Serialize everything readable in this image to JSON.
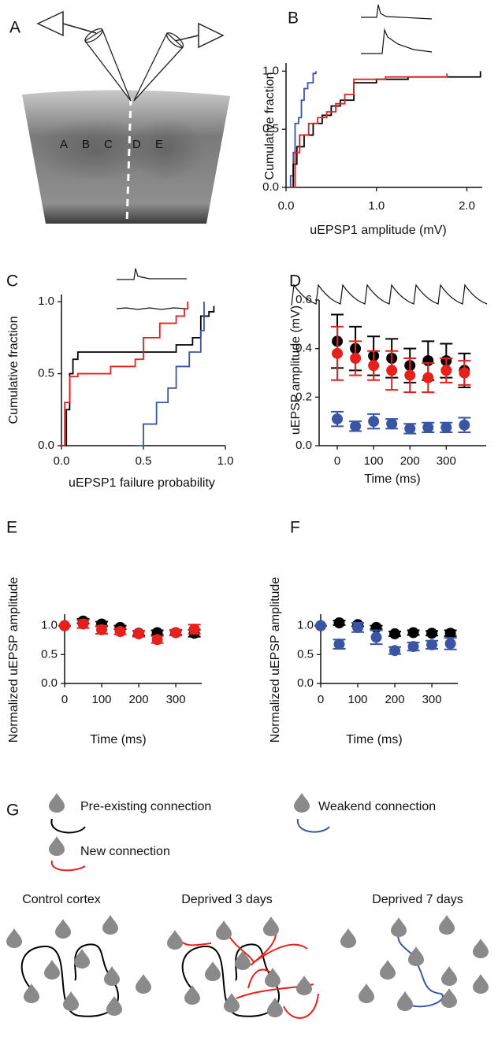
{
  "panel_labels": [
    "A",
    "B",
    "C",
    "D",
    "E",
    "F",
    "G"
  ],
  "panel_a": {
    "barrel_labels": [
      "A",
      "B",
      "C",
      "D",
      "E"
    ]
  },
  "panel_g": {
    "legend": [
      "Pre-existing connection",
      "Weakend connection",
      "New connection"
    ],
    "conditions": [
      "Control cortex",
      "Deprived 3 days",
      "Deprived 7 days"
    ]
  },
  "chart_data": [
    {
      "type": "step",
      "x_label": "uEPSP1 amplitude (mV)",
      "y_label": "Cumulative fraction",
      "xlim": [
        0,
        2.17
      ],
      "ylim": [
        0,
        1.07
      ],
      "xticks": [
        {
          "value": 0,
          "label": "0.0"
        },
        {
          "value": 1,
          "label": "1.0"
        },
        {
          "value": 2,
          "label": "2.0"
        }
      ],
      "yticks": [
        {
          "value": 0,
          "label": "0.0"
        },
        0.5,
        {
          "value": 1,
          "label": "1.0"
        }
      ],
      "series": [
        {
          "color": "#3a55a4",
          "x": [
            0.03,
            0.05,
            0.08,
            0.1,
            0.14,
            0.17,
            0.2,
            0.24,
            0.3,
            0.33
          ],
          "values": [
            0,
            0.1,
            0.3,
            0.55,
            0.6,
            0.75,
            0.85,
            0.9,
            0.98,
            1.0
          ]
        },
        {
          "color": "#000000",
          "x": [
            0.05,
            0.08,
            0.12,
            0.2,
            0.3,
            0.4,
            0.5,
            0.6,
            0.75,
            1.0,
            1.3,
            1.35,
            2.15
          ],
          "values": [
            0,
            0.2,
            0.35,
            0.45,
            0.55,
            0.62,
            0.7,
            0.75,
            0.9,
            0.93,
            0.93,
            0.95,
            1.0
          ]
        },
        {
          "color": "#e8201c",
          "x": [
            0.05,
            0.1,
            0.15,
            0.25,
            0.35,
            0.45,
            0.55,
            0.65,
            0.75,
            1.1,
            1.78
          ],
          "values": [
            0,
            0.3,
            0.45,
            0.55,
            0.6,
            0.65,
            0.72,
            0.8,
            0.93,
            0.95,
            0.98
          ]
        }
      ]
    },
    {
      "type": "step",
      "x_label": "uEPSP1 failure probability",
      "y_label": "Cumulative fraction",
      "xlim": [
        0,
        1.0
      ],
      "ylim": [
        0,
        1.05
      ],
      "xticks": [
        {
          "value": 0,
          "label": "0.0"
        },
        0.5,
        {
          "value": 1,
          "label": "1.0"
        }
      ],
      "yticks": [
        {
          "value": 0,
          "label": "0.0"
        },
        0.5,
        {
          "value": 1,
          "label": "1.0"
        }
      ],
      "series": [
        {
          "color": "#000000",
          "x": [
            0,
            0.03,
            0.05,
            0.07,
            0.1,
            0.3,
            0.6,
            0.7,
            0.8,
            0.85,
            0.9,
            0.93
          ],
          "values": [
            0,
            0.25,
            0.5,
            0.6,
            0.65,
            0.65,
            0.65,
            0.7,
            0.75,
            0.9,
            0.93,
            0.97
          ]
        },
        {
          "color": "#e8201c",
          "x": [
            0,
            0.02,
            0.05,
            0.1,
            0.3,
            0.45,
            0.5,
            0.6,
            0.7,
            0.75,
            0.77
          ],
          "values": [
            0,
            0.3,
            0.48,
            0.5,
            0.55,
            0.6,
            0.75,
            0.85,
            0.9,
            0.95,
            1.0
          ]
        },
        {
          "color": "#3a55a4",
          "x": [
            0.45,
            0.5,
            0.58,
            0.65,
            0.7,
            0.78,
            0.85,
            0.87
          ],
          "values": [
            0,
            0.15,
            0.3,
            0.4,
            0.55,
            0.65,
            0.8,
            1.0
          ]
        }
      ]
    },
    {
      "type": "scatter",
      "x_label": "Time (ms)",
      "y_label": "uEPSP amplitude (mV)",
      "xlim": [
        -50,
        410
      ],
      "ylim": [
        0,
        0.6
      ],
      "xticks": [
        0,
        100,
        200,
        300
      ],
      "yticks": [
        {
          "value": 0,
          "label": "0.0"
        },
        0.2,
        0.4,
        0.6
      ],
      "x": [
        0,
        50,
        100,
        150,
        200,
        250,
        300,
        350
      ],
      "series": [
        {
          "color": "#000000",
          "values": [
            0.43,
            0.4,
            0.37,
            0.36,
            0.33,
            0.35,
            0.35,
            0.31
          ],
          "errors": [
            0.11,
            0.09,
            0.08,
            0.08,
            0.07,
            0.08,
            0.07,
            0.07
          ]
        },
        {
          "color": "#e8201c",
          "values": [
            0.38,
            0.36,
            0.33,
            0.31,
            0.29,
            0.28,
            0.31,
            0.3
          ],
          "errors": [
            0.11,
            0.07,
            0.06,
            0.08,
            0.07,
            0.06,
            0.05,
            0.05
          ]
        },
        {
          "color": "#3a55a4",
          "values": [
            0.11,
            0.08,
            0.1,
            0.09,
            0.07,
            0.075,
            0.075,
            0.085
          ],
          "errors": [
            0.03,
            0.02,
            0.03,
            0.02,
            0.02,
            0.02,
            0.02,
            0.03
          ]
        }
      ]
    },
    {
      "type": "scatter",
      "x_label": "Time (ms)",
      "y_label": "Normalized uEPSP amplitude",
      "xlim": [
        0,
        370
      ],
      "ylim": [
        0,
        1.2
      ],
      "xticks": [
        0,
        100,
        200,
        300
      ],
      "yticks": [
        {
          "value": 0,
          "label": "0.0"
        },
        0.5,
        {
          "value": 1,
          "label": "1.0"
        }
      ],
      "x": [
        0,
        50,
        100,
        150,
        200,
        250,
        300,
        350
      ],
      "series": [
        {
          "color": "#000000",
          "values": [
            1.0,
            1.08,
            1.03,
            0.97,
            0.87,
            0.88,
            0.88,
            0.87
          ],
          "errors": [
            0,
            0.04,
            0.04,
            0.03,
            0.04,
            0.04,
            0.04,
            0.06
          ]
        },
        {
          "color": "#e8201c",
          "values": [
            1.0,
            1.03,
            0.93,
            0.9,
            0.86,
            0.76,
            0.88,
            0.94
          ],
          "errors": [
            0,
            0.07,
            0.07,
            0.05,
            0.05,
            0.06,
            0.05,
            0.08
          ]
        }
      ]
    },
    {
      "type": "scatter",
      "x_label": "Time (ms)",
      "y_label": "Normalized uEPSP amplitude",
      "xlim": [
        0,
        370
      ],
      "ylim": [
        0,
        1.2
      ],
      "xticks": [
        0,
        100,
        200,
        300
      ],
      "yticks": [
        {
          "value": 0,
          "label": "0.0"
        },
        0.5,
        {
          "value": 1,
          "label": "1.0"
        }
      ],
      "x": [
        0,
        50,
        100,
        150,
        200,
        250,
        300,
        350
      ],
      "series": [
        {
          "color": "#000000",
          "values": [
            1.0,
            1.05,
            1.02,
            0.97,
            0.86,
            0.88,
            0.87,
            0.87
          ],
          "errors": [
            0,
            0.04,
            0.03,
            0.03,
            0.04,
            0.04,
            0.04,
            0.05
          ]
        },
        {
          "color": "#3a55a4",
          "values": [
            1.0,
            0.68,
            0.97,
            0.8,
            0.57,
            0.64,
            0.67,
            0.69
          ],
          "errors": [
            0,
            0.08,
            0.08,
            0.12,
            0.06,
            0.07,
            0.07,
            0.1
          ]
        }
      ]
    }
  ]
}
